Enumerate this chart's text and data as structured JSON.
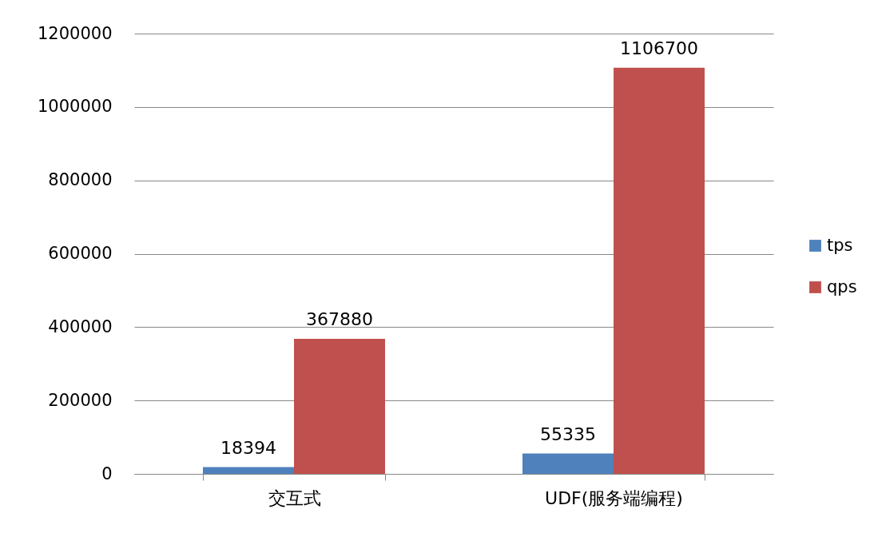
{
  "chart_data": {
    "type": "bar",
    "categories": [
      "交互式",
      "UDF(服务端编程)"
    ],
    "series": [
      {
        "name": "tps",
        "color": "#4f81bd",
        "values": [
          18394,
          55335
        ]
      },
      {
        "name": "qps",
        "color": "#c0504d",
        "values": [
          367880,
          1106700
        ]
      }
    ],
    "ylim": [
      0,
      1200000
    ],
    "yticks": [
      0,
      200000,
      400000,
      600000,
      800000,
      1000000,
      1200000
    ],
    "grid": "y",
    "legend": "right",
    "data_labels": true
  }
}
